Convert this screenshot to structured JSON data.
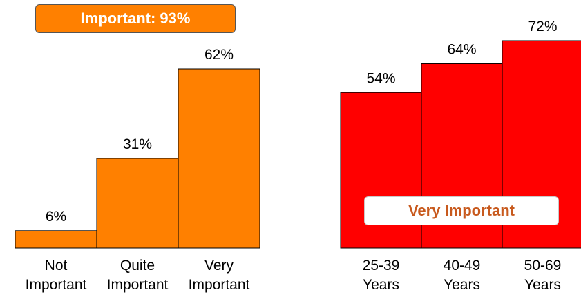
{
  "chart_data": [
    {
      "type": "bar",
      "categories": [
        [
          "Not",
          "Important"
        ],
        [
          "Quite",
          "Important"
        ],
        [
          "Very",
          "Important"
        ]
      ],
      "values": [
        6,
        31,
        62
      ],
      "value_labels": [
        "6%",
        "31%",
        "62%"
      ],
      "bar_color": "#ff8000",
      "ylim": [
        0,
        62
      ],
      "grid": false,
      "badge": {
        "text": "Important: 93%",
        "fill": "#ff8000",
        "text_color": "#ffffff"
      }
    },
    {
      "type": "bar",
      "categories": [
        [
          "25-39",
          "Years"
        ],
        [
          "40-49",
          "Years"
        ],
        [
          "50-69",
          "Years"
        ]
      ],
      "values": [
        54,
        64,
        72
      ],
      "value_labels": [
        "54%",
        "64%",
        "72%"
      ],
      "bar_color": "#ff0000",
      "ylim": [
        0,
        72
      ],
      "grid": false,
      "badge": {
        "text": "Very Important",
        "fill": "#ffffff",
        "text_color": "#c85a1e"
      }
    }
  ]
}
